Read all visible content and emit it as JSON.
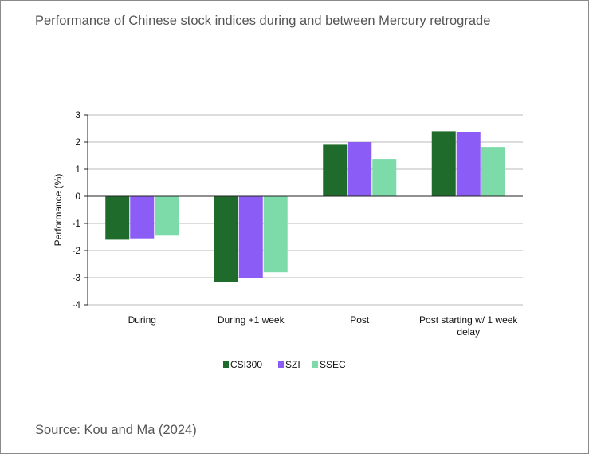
{
  "title": "Performance of Chinese stock indices during and between Mercury retrograde",
  "source": "Source: Kou and Ma (2024)",
  "colors": {
    "CSI300": "#1e6b2c",
    "SZI": "#8b5cf6",
    "SSEC": "#7ddbaa",
    "grid": "#b9b9b9",
    "axis": "#222222"
  },
  "chart_data": {
    "type": "bar",
    "title": "Performance of Chinese stock indices during and between Mercury retrograde",
    "xlabel": "",
    "ylabel": "Performance (%)",
    "ylim": [
      -4,
      3
    ],
    "yticks": [
      3,
      2,
      1,
      0,
      -1,
      -2,
      -3,
      -4
    ],
    "grid": true,
    "legend_position": "bottom",
    "categories": [
      [
        "During"
      ],
      [
        "During +1 week"
      ],
      [
        "Post"
      ],
      [
        "Post starting w/ 1 week",
        "delay"
      ]
    ],
    "series": [
      {
        "name": "CSI300",
        "color": "#1e6b2c",
        "values": [
          -1.6,
          -3.15,
          1.9,
          2.4
        ]
      },
      {
        "name": "SZI",
        "color": "#8b5cf6",
        "values": [
          -1.55,
          -3.0,
          2.0,
          2.38
        ]
      },
      {
        "name": "SSEC",
        "color": "#7ddbaa",
        "values": [
          -1.45,
          -2.8,
          1.38,
          1.82
        ]
      }
    ]
  }
}
